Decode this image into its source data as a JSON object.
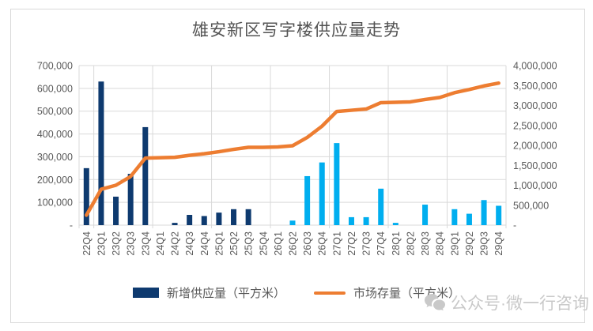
{
  "title": "雄安新区写字楼供应量走势",
  "legend": [
    {
      "label": "新增供应量（平方米）",
      "swatch": "bar-swatch"
    },
    {
      "label": "市场存量（平方米）",
      "swatch": "line-swatch"
    }
  ],
  "watermark": {
    "icon": "wechat-icon",
    "text": "公众号·微一行咨询"
  },
  "colors": {
    "bar_historical": "#0E3A6F",
    "bar_forecast": "#00AEEF",
    "line": "#ED7D31",
    "grid": "#D9D9D9",
    "axis_text": "#595959",
    "title_text": "#535353",
    "frame_border": "#D9D9D9",
    "watermark_text": "#C9C9C9"
  },
  "axes": {
    "left": {
      "ticks": [
        "700,000",
        "600,000",
        "500,000",
        "400,000",
        "300,000",
        "200,000",
        "100,000",
        "-"
      ]
    },
    "right": {
      "ticks": [
        "4,000,000",
        "3,500,000",
        "3,000,000",
        "2,500,000",
        "2,000,000",
        "1,500,000",
        "1,000,000",
        "500,000",
        "-"
      ]
    }
  },
  "chart_data": {
    "type": "bar",
    "title": "雄安新区写字楼供应量走势",
    "xlabel": "",
    "ylabel_left": "新增供应量（平方米）",
    "ylabel_right": "市场存量（平方米）",
    "left_axis_range": [
      0,
      700000
    ],
    "right_axis_range": [
      0,
      4000000
    ],
    "grid": true,
    "legend_position": "bottom",
    "categories": [
      "22Q4",
      "23Q1",
      "23Q2",
      "23Q3",
      "23Q4",
      "24Q1",
      "24Q2",
      "24Q3",
      "24Q4",
      "25Q1",
      "25Q2",
      "25Q3",
      "25Q4",
      "26Q1",
      "26Q2",
      "26Q3",
      "26Q4",
      "27Q1",
      "27Q2",
      "27Q3",
      "27Q4",
      "28Q1",
      "28Q2",
      "28Q3",
      "28Q4",
      "29Q1",
      "29Q2",
      "29Q3",
      "29Q4"
    ],
    "series": [
      {
        "name": "新增供应量（平方米）",
        "type": "bar",
        "axis": "left",
        "forecast_start_index": 14,
        "values": [
          250000,
          630000,
          125000,
          225000,
          430000,
          0,
          10000,
          45000,
          40000,
          55000,
          70000,
          70000,
          0,
          0,
          20000,
          215000,
          275000,
          360000,
          35000,
          35000,
          160000,
          10000,
          0,
          90000,
          0,
          70000,
          50000,
          110000,
          85000
        ]
      },
      {
        "name": "市场存量（平方米）",
        "type": "line",
        "axis": "right",
        "values": [
          250000,
          900000,
          1000000,
          1220000,
          1680000,
          1690000,
          1700000,
          1750000,
          1790000,
          1840000,
          1900000,
          1950000,
          1950000,
          1960000,
          1990000,
          2200000,
          2480000,
          2850000,
          2880000,
          2910000,
          3070000,
          3080000,
          3090000,
          3150000,
          3200000,
          3320000,
          3400000,
          3490000,
          3560000
        ]
      }
    ]
  }
}
